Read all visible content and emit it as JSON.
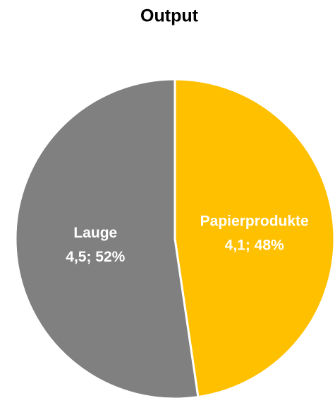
{
  "chart_data": {
    "type": "pie",
    "title": "Output",
    "categories": [
      "Papierprodukte",
      "Lauge"
    ],
    "values": [
      4.1,
      4.5
    ],
    "value_labels": [
      "4,1; 48%",
      "4,5; 52%"
    ],
    "colors": [
      "#FFC000",
      "#808080"
    ]
  }
}
